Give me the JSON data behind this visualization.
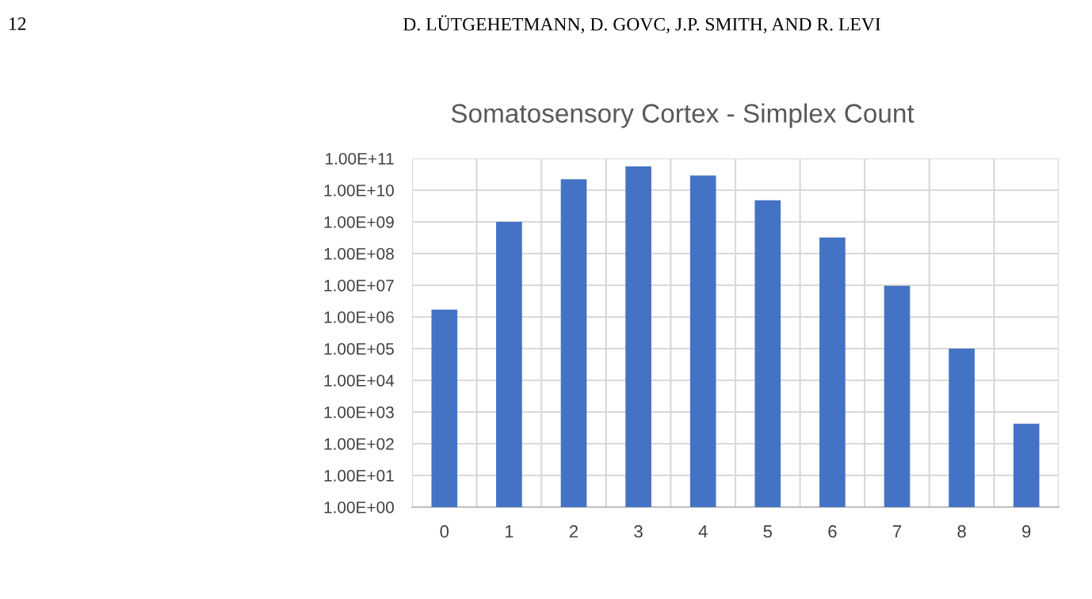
{
  "chart_data": {
    "type": "bar",
    "title": "Somatosensory Cortex - Simplex Count",
    "annotations": [
      "12",
      "D. LÜTGEHETMANN, D. GOVC, J.P. SMITH, AND R. LEVI"
    ],
    "categories": [
      "0",
      "1",
      "2",
      "3",
      "4",
      "5",
      "6",
      "7",
      "8",
      "9"
    ],
    "values": [
      1700000.0,
      1000000000.0,
      22000000000.0,
      56000000000.0,
      29000000000.0,
      4800000000.0,
      320000000.0,
      9600000.0,
      100000.0,
      430
    ],
    "color": "#4472c4",
    "log": true,
    "ylim": [
      1,
      100000000000.0
    ],
    "yticks": [
      {
        "value": 1,
        "label": "1.00E+00"
      },
      {
        "value": 10,
        "label": "1.00E+01"
      },
      {
        "value": 100,
        "label": "1.00E+02"
      },
      {
        "value": 1000,
        "label": "1.00E+03"
      },
      {
        "value": 10000.0,
        "label": "1.00E+04"
      },
      {
        "value": 100000.0,
        "label": "1.00E+05"
      },
      {
        "value": 1000000.0,
        "label": "1.00E+06"
      },
      {
        "value": 10000000.0,
        "label": "1.00E+07"
      },
      {
        "value": 100000000.0,
        "label": "1.00E+08"
      },
      {
        "value": 1000000000.0,
        "label": "1.00E+09"
      },
      {
        "value": 10000000000.0,
        "label": "1.00E+10"
      },
      {
        "value": 100000000000.0,
        "label": "1.00E+11"
      }
    ],
    "grid": true
  }
}
